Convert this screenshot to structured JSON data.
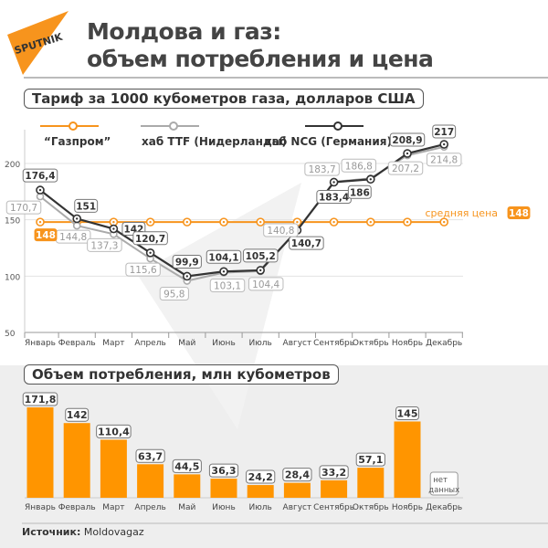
{
  "header": {
    "logo_text": "SPUTNIK",
    "title_line1": "Молдова и газ:",
    "title_line2": "объем потребления и цена"
  },
  "colors": {
    "gazprom": "#f7941d",
    "ttf": "#aaaaaa",
    "ncg": "#333333",
    "bar": "#ff9500"
  },
  "chart_data": [
    {
      "type": "line",
      "title": "Тариф за 1000 кубометров газа, долларов США",
      "categories": [
        "Январь",
        "Февраль",
        "Март",
        "Апрель",
        "Май",
        "Июнь",
        "Июль",
        "Август",
        "Сентябрь",
        "Октябрь",
        "Ноябрь",
        "Декабрь"
      ],
      "yticks": [
        50,
        100,
        150,
        200
      ],
      "ylim": [
        50,
        230
      ],
      "grid": true,
      "legend_placement": "top",
      "series": [
        {
          "name": "“Газпром”",
          "values": [
            148,
            148,
            148,
            148,
            148,
            148,
            148,
            148,
            148,
            148,
            148,
            148
          ]
        },
        {
          "name": "хаб TTF (Нидерланды)",
          "values": [
            170.7,
            144.8,
            137.3,
            115.6,
            95.8,
            103.1,
            104.4,
            140.8,
            183.7,
            186.8,
            207.2,
            214.8
          ],
          "labels": [
            "170,7",
            "144,8",
            "137,3",
            "115,6",
            "95,8",
            "103,1",
            "104,4",
            "140,8",
            "183,7",
            "186,8",
            "207,2",
            "214,8"
          ]
        },
        {
          "name": "хаб NCG (Германия)",
          "values": [
            176.4,
            151,
            142,
            120.7,
            99.9,
            104.1,
            105.2,
            140.7,
            183.4,
            186,
            208.9,
            217
          ],
          "labels": [
            "176,4",
            "151",
            "142",
            "120,7",
            "99,9",
            "104,1",
            "105,2",
            "140,7",
            "183,4",
            "186",
            "208,9",
            "217"
          ]
        }
      ],
      "annotations": {
        "avg_label": "средняя цена",
        "avg_value": "148"
      }
    },
    {
      "type": "bar",
      "title": "Объем потребления, млн кубометров",
      "categories": [
        "Январь",
        "Февраль",
        "Март",
        "Апрель",
        "Май",
        "Июнь",
        "Июль",
        "Август",
        "Сентябрь",
        "Октябрь",
        "Ноябрь",
        "Декабрь"
      ],
      "values": [
        171.8,
        142,
        110.4,
        63.7,
        44.5,
        36.3,
        24.2,
        28.4,
        33.2,
        57.1,
        145,
        null
      ],
      "labels": [
        "171,8",
        "142",
        "110,4",
        "63,7",
        "44,5",
        "36,3",
        "24,2",
        "28,4",
        "33,2",
        "57,1",
        "145",
        ""
      ],
      "no_data_label_line1": "нет",
      "no_data_label_line2": "данных"
    }
  ],
  "footer": {
    "source_label": "Источник:",
    "source_value": "Moldovagaz"
  }
}
